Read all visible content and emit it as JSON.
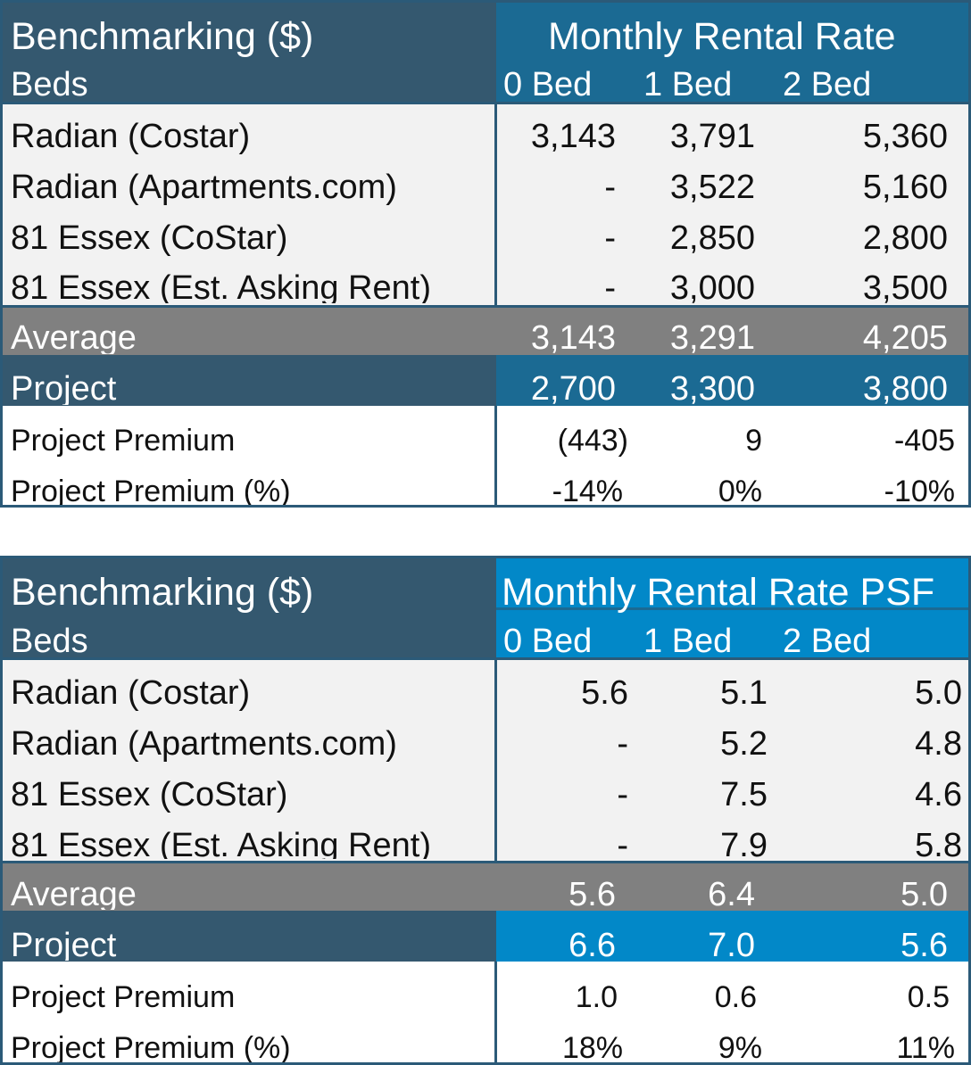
{
  "tables": [
    {
      "title": "Benchmarking ($)",
      "group_header": "Monthly Rental Rate",
      "beds_label": "Beds",
      "bed_headers": [
        "0 Bed",
        "1 Bed",
        "2 Bed"
      ],
      "rows": [
        {
          "label": "Radian (Costar)",
          "values": [
            "3,143",
            "3,791",
            "5,360"
          ]
        },
        {
          "label": "Radian (Apartments.com)",
          "values": [
            "-",
            "3,522",
            "5,160"
          ]
        },
        {
          "label": "81 Essex (CoStar)",
          "values": [
            "-",
            "2,850",
            "2,800"
          ]
        },
        {
          "label": "81 Essex (Est. Asking Rent)",
          "values": [
            "-",
            "3,000",
            "3,500"
          ]
        }
      ],
      "average": {
        "label": "Average",
        "values": [
          "3,143",
          "3,291",
          "4,205"
        ]
      },
      "project": {
        "label": "Project",
        "values": [
          "2,700",
          "3,300",
          "3,800"
        ]
      },
      "premium": {
        "label": "Project Premium",
        "values": [
          "(443)",
          "9",
          "-405"
        ]
      },
      "premium_pct": {
        "label": "Project Premium (%)",
        "values": [
          "-14%",
          "0%",
          "-10%"
        ]
      }
    },
    {
      "title": "Benchmarking ($)",
      "group_header": "Monthly Rental Rate PSF",
      "beds_label": "Beds",
      "bed_headers": [
        "0 Bed",
        "1 Bed",
        "2 Bed"
      ],
      "rows": [
        {
          "label": "Radian (Costar)",
          "values": [
            "5.6",
            "5.1",
            "5.0"
          ]
        },
        {
          "label": "Radian (Apartments.com)",
          "values": [
            "-",
            "5.2",
            "4.8"
          ]
        },
        {
          "label": "81 Essex (CoStar)",
          "values": [
            "-",
            "7.5",
            "4.6"
          ]
        },
        {
          "label": "81 Essex (Est. Asking Rent)",
          "values": [
            "-",
            "7.9",
            "5.8"
          ]
        }
      ],
      "average": {
        "label": "Average",
        "values": [
          "5.6",
          "6.4",
          "5.0"
        ]
      },
      "project": {
        "label": "Project",
        "values": [
          "6.6",
          "7.0",
          "5.6"
        ]
      },
      "premium": {
        "label": "Project Premium",
        "values": [
          "1.0",
          "0.6",
          "0.5"
        ]
      },
      "premium_pct": {
        "label": "Project Premium (%)",
        "values": [
          "18%",
          "9%",
          "11%"
        ]
      }
    }
  ],
  "colors": {
    "dark_blue": "#34586f",
    "teal_blue_1": "#1b6a93",
    "bright_blue_2": "#0288c8",
    "average_gray": "#808080",
    "body_gray": "#f2f2f2",
    "border": "#2b5a78"
  }
}
